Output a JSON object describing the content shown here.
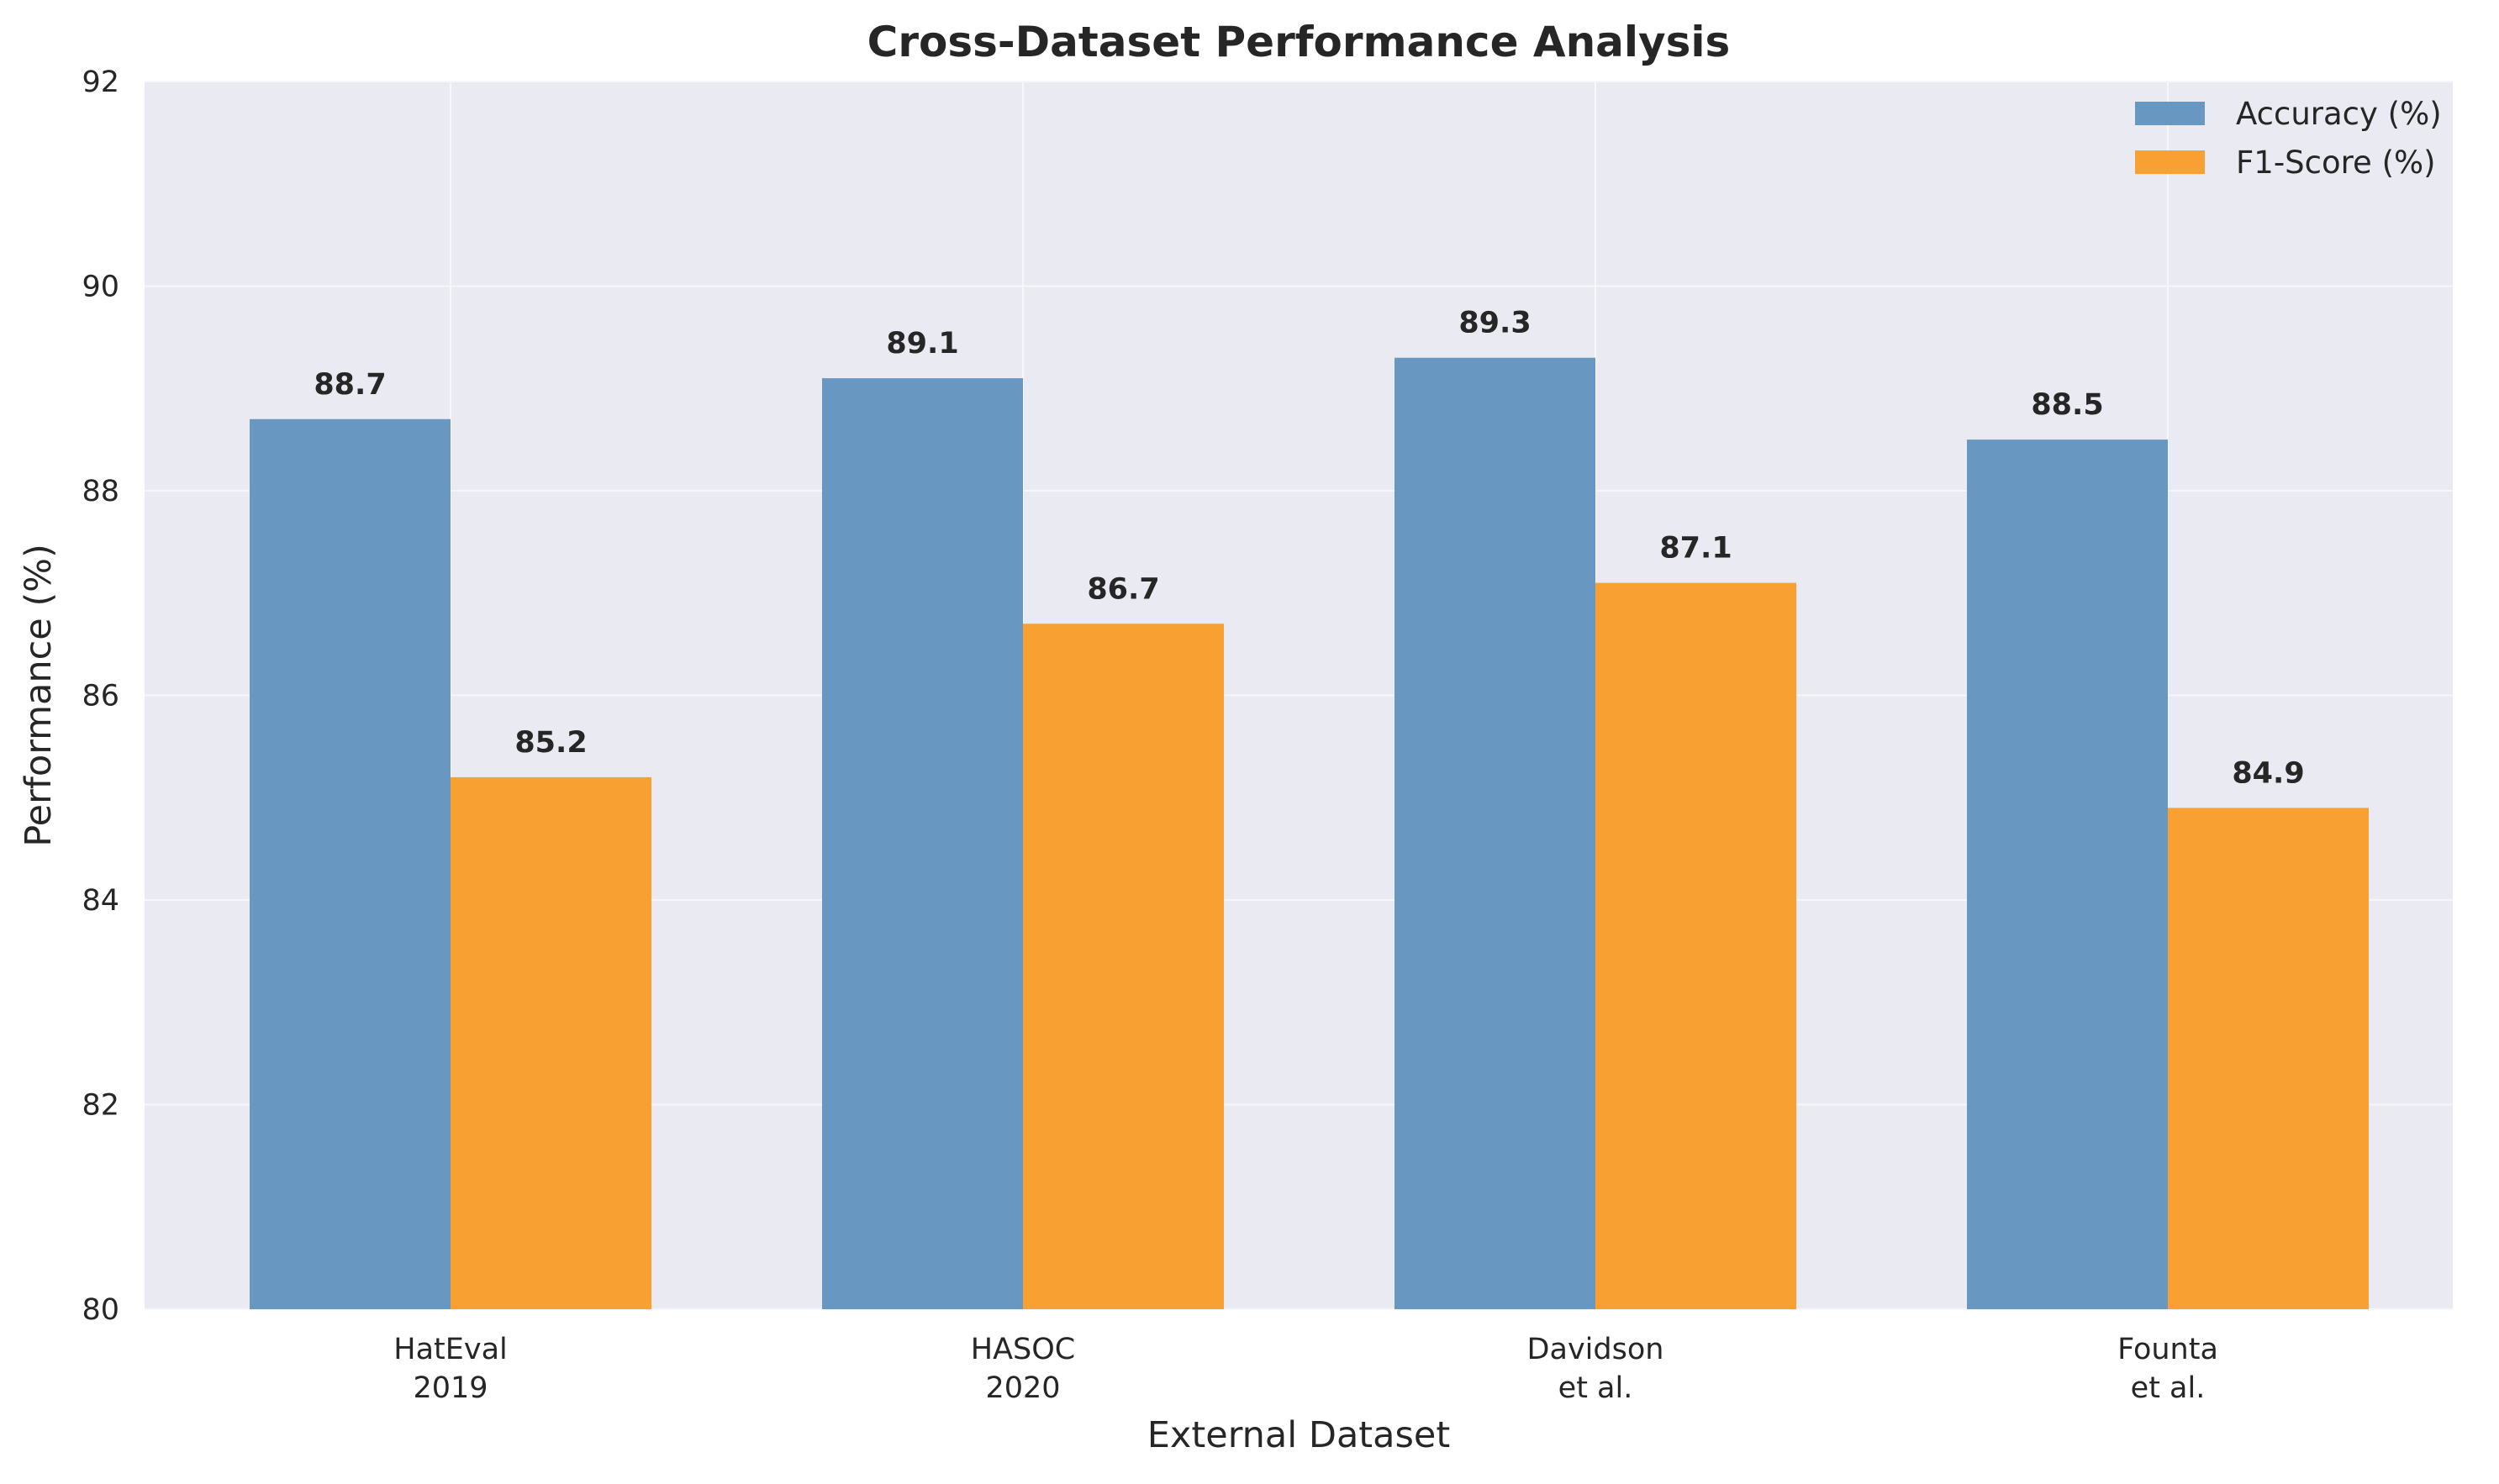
{
  "chart_data": {
    "type": "bar",
    "title": "Cross-Dataset Performance Analysis",
    "xlabel": "External Dataset",
    "ylabel": "Performance (%)",
    "categories": [
      [
        "HatEval",
        "2019"
      ],
      [
        "HASOC",
        "2020"
      ],
      [
        "Davidson",
        "et al."
      ],
      [
        "Founta",
        "et al."
      ]
    ],
    "series": [
      {
        "name": "Accuracy (%)",
        "values": [
          88.7,
          89.1,
          89.3,
          88.5
        ],
        "color": "#6897C1"
      },
      {
        "name": "F1-Score (%)",
        "values": [
          85.2,
          86.7,
          87.1,
          84.9
        ],
        "color": "#F9A033"
      }
    ],
    "ylim": [
      80,
      92
    ],
    "yticks": [
      80,
      82,
      84,
      86,
      88,
      90,
      92
    ],
    "grid": true,
    "legend_position": "top-right",
    "background_color": "#EAEAF2",
    "grid_color": "#F7F7FA"
  }
}
